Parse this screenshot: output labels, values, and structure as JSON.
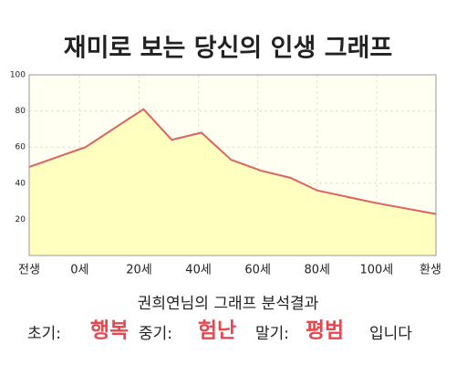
{
  "chart_data": {
    "type": "area",
    "title": "재미로 보는 당신의 인생 그래프",
    "x": [
      -17,
      2,
      21.5,
      31,
      41,
      51,
      61,
      71,
      80,
      100,
      120
    ],
    "values": [
      49,
      60,
      81,
      64,
      68,
      53,
      47,
      43,
      36,
      29,
      23
    ],
    "color": "#e06060",
    "fill": "#ffffc0",
    "xlim": [
      -17,
      120
    ],
    "ylim": [
      0,
      100
    ],
    "yticks": [
      20,
      40,
      60,
      80,
      100
    ],
    "xticks": [
      {
        "value": -17,
        "label": "전생"
      },
      {
        "value": 0,
        "label": "0세"
      },
      {
        "value": 20,
        "label": "20세"
      },
      {
        "value": 40,
        "label": "40세"
      },
      {
        "value": 60,
        "label": "60세"
      },
      {
        "value": 80,
        "label": "80세"
      },
      {
        "value": 100,
        "label": "100세"
      },
      {
        "value": 120,
        "label": "환생"
      }
    ],
    "grid": true
  },
  "result": {
    "heading": "권희연님의 그래프 분석결과",
    "items": [
      {
        "label": "초기:",
        "value": "행복"
      },
      {
        "label": "중기:",
        "value": "험난"
      },
      {
        "label": "말기:",
        "value": "평범"
      }
    ],
    "suffix": "입니다"
  }
}
